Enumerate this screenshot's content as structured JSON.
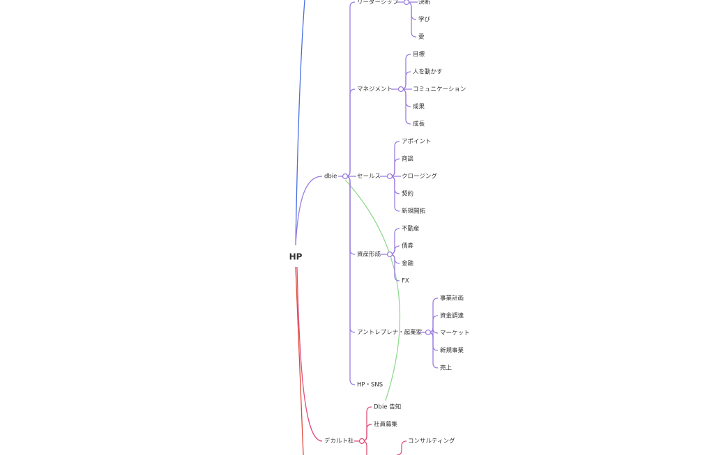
{
  "root": "HP",
  "dbie": {
    "label": "dbie",
    "children": [
      {
        "label": "リーダーシップ",
        "children": [
          "決断",
          "学び",
          "愛"
        ]
      },
      {
        "label": "マネジメント",
        "children": [
          "目標",
          "人を動かす",
          "コミュニケーション",
          "成果",
          "成長"
        ]
      },
      {
        "label": "セールス",
        "children": [
          "アポイント",
          "商談",
          "クロージング",
          "契約",
          "新規開拓"
        ]
      },
      {
        "label": "資産形成",
        "children": [
          "不動産",
          "債券",
          "金融",
          "FX"
        ]
      },
      {
        "label": "アントレプレナ・起業家",
        "children": [
          "事業計画",
          "資金調達",
          "マーケット",
          "新規事業",
          "売上"
        ]
      },
      {
        "label": "HP・SNS",
        "children": []
      }
    ]
  },
  "decalt": {
    "label": "デカルト社",
    "children": [
      "Dbie 告知",
      "社員募集"
    ],
    "more": [
      "コンサルティング"
    ]
  }
}
